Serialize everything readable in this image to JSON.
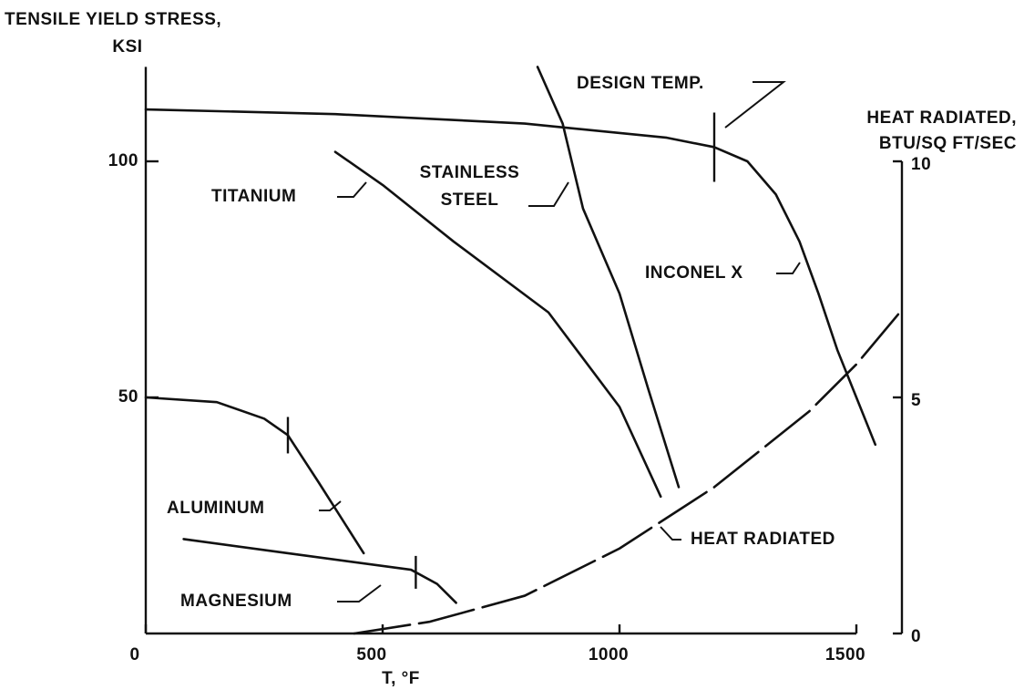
{
  "chart_data": {
    "type": "line",
    "ylabel": [
      "TENSILE YIELD STRESS,",
      "KSI"
    ],
    "y2label": [
      "HEAT RADIATED,",
      "BTU/SQ FT/SEC"
    ],
    "xlabel": "T, °F",
    "xlim": [
      0,
      1500
    ],
    "xticks": [
      0,
      500,
      1000,
      1500
    ],
    "ylim": [
      0,
      120
    ],
    "yticks": [
      50,
      100
    ],
    "y2lim": [
      0,
      12
    ],
    "y2ticks": [
      0,
      5,
      10
    ],
    "color": "#111111",
    "series": [
      {
        "name": "INCONEL X",
        "x": [
          0,
          400,
          800,
          1100,
          1200,
          1270,
          1330,
          1380,
          1420,
          1460,
          1500,
          1540
        ],
        "values": [
          111,
          110,
          108,
          105,
          103,
          100,
          93,
          83,
          72,
          60,
          50,
          40
        ]
      },
      {
        "name": "TITANIUM",
        "x": [
          400,
          500,
          650,
          850,
          1000,
          1087
        ],
        "values": [
          102,
          95,
          83,
          68,
          48,
          29
        ]
      },
      {
        "name": "STAINLESS STEEL",
        "x": [
          827,
          880,
          923,
          1000,
          1060,
          1125
        ],
        "values": [
          120,
          108,
          90,
          72,
          52,
          31
        ]
      },
      {
        "name": "ALUMINUM",
        "x": [
          0,
          150,
          250,
          300,
          365,
          460
        ],
        "values": [
          50,
          49,
          45.5,
          42,
          32,
          17
        ]
      },
      {
        "name": "MAGNESIUM",
        "x": [
          80,
          300,
          560,
          615,
          655
        ],
        "values": [
          20,
          17,
          13.5,
          10.5,
          6.5
        ]
      },
      {
        "name": "HEAT RADIATED",
        "axis": "y2",
        "dashed": true,
        "x": [
          440,
          600,
          800,
          1000,
          1200,
          1400,
          1500,
          1600
        ],
        "values": [
          0,
          0.25,
          0.8,
          1.8,
          3.1,
          4.7,
          5.7,
          6.9
        ]
      }
    ],
    "design_temp": {
      "label": "DESIGN TEMP.",
      "x": [
        300,
        570,
        1200
      ]
    }
  }
}
